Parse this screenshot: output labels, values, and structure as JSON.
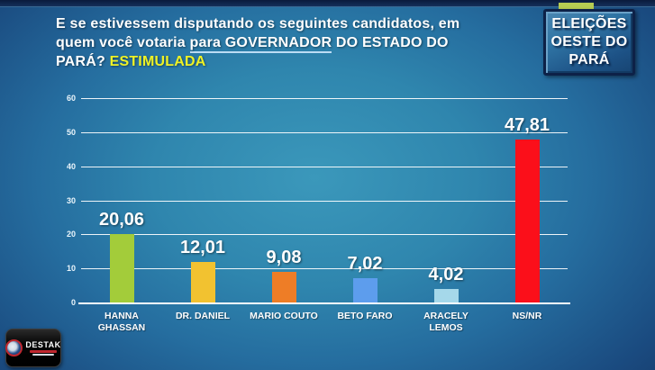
{
  "slide": {
    "title": {
      "segments": [
        {
          "text": "E se estivessem disputando os seguintes candidatos, em quem você votaria ",
          "style": "normal"
        },
        {
          "text": "para GOVERNADOR",
          "style": "underline"
        },
        {
          "text": " DO ESTADO DO PARÁ? ",
          "style": "normal"
        },
        {
          "text": "ESTIMULADA",
          "style": "highlight"
        }
      ]
    },
    "badge": {
      "lines": [
        "ELEIÇÕES",
        "OESTE DO",
        "PARÁ"
      ],
      "accent_tab_color": "#b6cc52"
    },
    "logo": {
      "name": "DESTAK"
    }
  },
  "chart_data": {
    "type": "bar",
    "title": "E se estivessem disputando os seguintes candidatos, em quem você votaria para GOVERNADOR DO ESTADO DO PARÁ? ESTIMULADA",
    "categories": [
      "HANNA GHASSAN",
      "DR. DANIEL",
      "MARIO COUTO",
      "BETO FARO",
      "ARACELY LEMOS",
      "NS/NR"
    ],
    "category_lines": [
      [
        "HANNA",
        "GHASSAN"
      ],
      [
        "DR. DANIEL"
      ],
      [
        "MARIO COUTO"
      ],
      [
        "BETO FARO"
      ],
      [
        "ARACELY",
        "LEMOS"
      ],
      [
        "NS/NR"
      ]
    ],
    "values": [
      20.06,
      12.01,
      9.08,
      7.02,
      4.02,
      47.81
    ],
    "value_labels": [
      "20,06",
      "12,01",
      "9,08",
      "7,02",
      "4,02",
      "47,81"
    ],
    "bar_colors": [
      "#a3cc3a",
      "#f2c230",
      "#ee7d26",
      "#5d9ded",
      "#a5d8ea",
      "#fb0f1a"
    ],
    "xlabel": "",
    "ylabel": "",
    "ylim": [
      0,
      60
    ],
    "y_ticks": [
      0,
      10,
      20,
      30,
      40,
      50,
      60
    ],
    "y_tick_labels": [
      "0",
      "10",
      "20",
      "30",
      "40",
      "50",
      "60"
    ],
    "grid": true,
    "gridline_color": "#ffffff",
    "legend": "none",
    "background_center_color": "#2f86ae",
    "background_edge_color": "#112849"
  }
}
